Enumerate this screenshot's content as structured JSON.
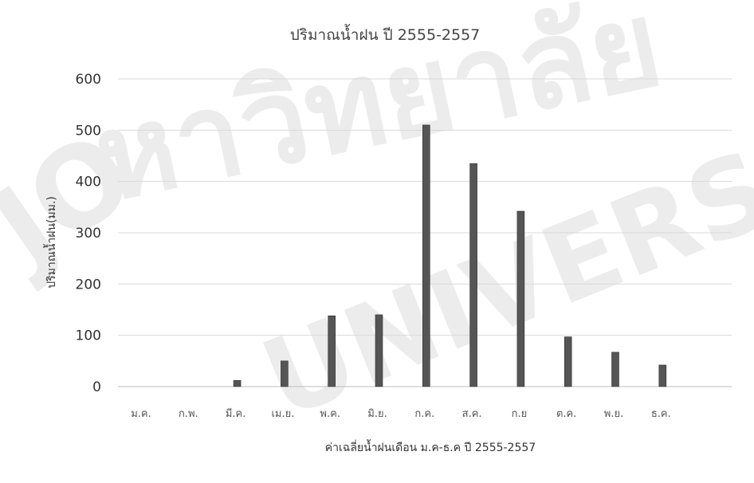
{
  "chart_data": {
    "type": "bar",
    "title": "ปริมาณน้ำฝน ปี 2555-2557",
    "xlabel": "ค่าเฉลี่ยน้ำฝนเดือน ม.ค-ธ.ค ปี 2555-2557",
    "ylabel": "ปริมาณน้ำฝน(มม.)",
    "ylim": [
      0,
      600
    ],
    "yticks": [
      0,
      100,
      200,
      300,
      400,
      500,
      600
    ],
    "grid": true,
    "categories": [
      "ม.ค.",
      "ก.พ.",
      "มี.ค.",
      "เม.ย.",
      "พ.ค.",
      "มิ.ย.",
      "ก.ค.",
      "ส.ค.",
      "ก.ย",
      "ต.ค.",
      "พ.ย.",
      "ธ.ค."
    ],
    "values": [
      0,
      0,
      12,
      50,
      138,
      140,
      510,
      435,
      342,
      97,
      67,
      42
    ],
    "bar_color": "#555555"
  },
  "watermark": {
    "thai_text": "หาวิทยาลัย",
    "latin_text": "UNIVERS",
    "latin_left": "JO",
    "color": "#e9e9e9"
  }
}
